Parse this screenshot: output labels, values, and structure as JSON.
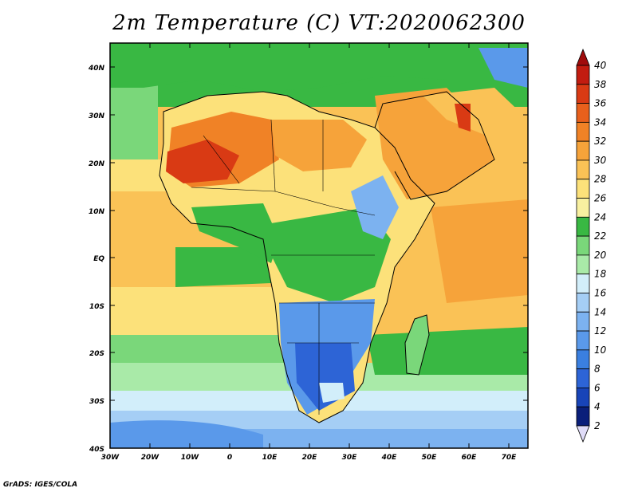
{
  "title": "2m Temperature (C) VT:2020062300",
  "credit": "GrADS: IGES/COLA",
  "map": {
    "variable": "2m Temperature",
    "units": "C",
    "valid_time": "2020062300",
    "lon_range": [
      -30,
      75
    ],
    "lat_range": [
      -40,
      45
    ],
    "lat_labels": [
      "40N",
      "30N",
      "20N",
      "10N",
      "EQ",
      "10S",
      "20S",
      "30S",
      "40S"
    ],
    "lon_labels": [
      "30W",
      "20W",
      "10W",
      "0",
      "10E",
      "20E",
      "30E",
      "40E",
      "50E",
      "60E",
      "70E"
    ]
  },
  "colorbar": {
    "levels": [
      "2",
      "4",
      "6",
      "8",
      "10",
      "12",
      "14",
      "16",
      "18",
      "20",
      "22",
      "24",
      "26",
      "28",
      "30",
      "32",
      "34",
      "36",
      "38",
      "40"
    ],
    "colors": [
      "#0a1f7a",
      "#1844b8",
      "#2d64d6",
      "#3a7fe0",
      "#5a99ea",
      "#7cb2f0",
      "#a5cef5",
      "#d2eefa",
      "#a9eaa8",
      "#7ad77a",
      "#39b843",
      "#f8f0a0",
      "#fce17a",
      "#fac256",
      "#f6a33a",
      "#f08226",
      "#e8601c",
      "#d93a14",
      "#c21c10",
      "#a00c0c"
    ],
    "below_color": "#e0dcf8"
  }
}
